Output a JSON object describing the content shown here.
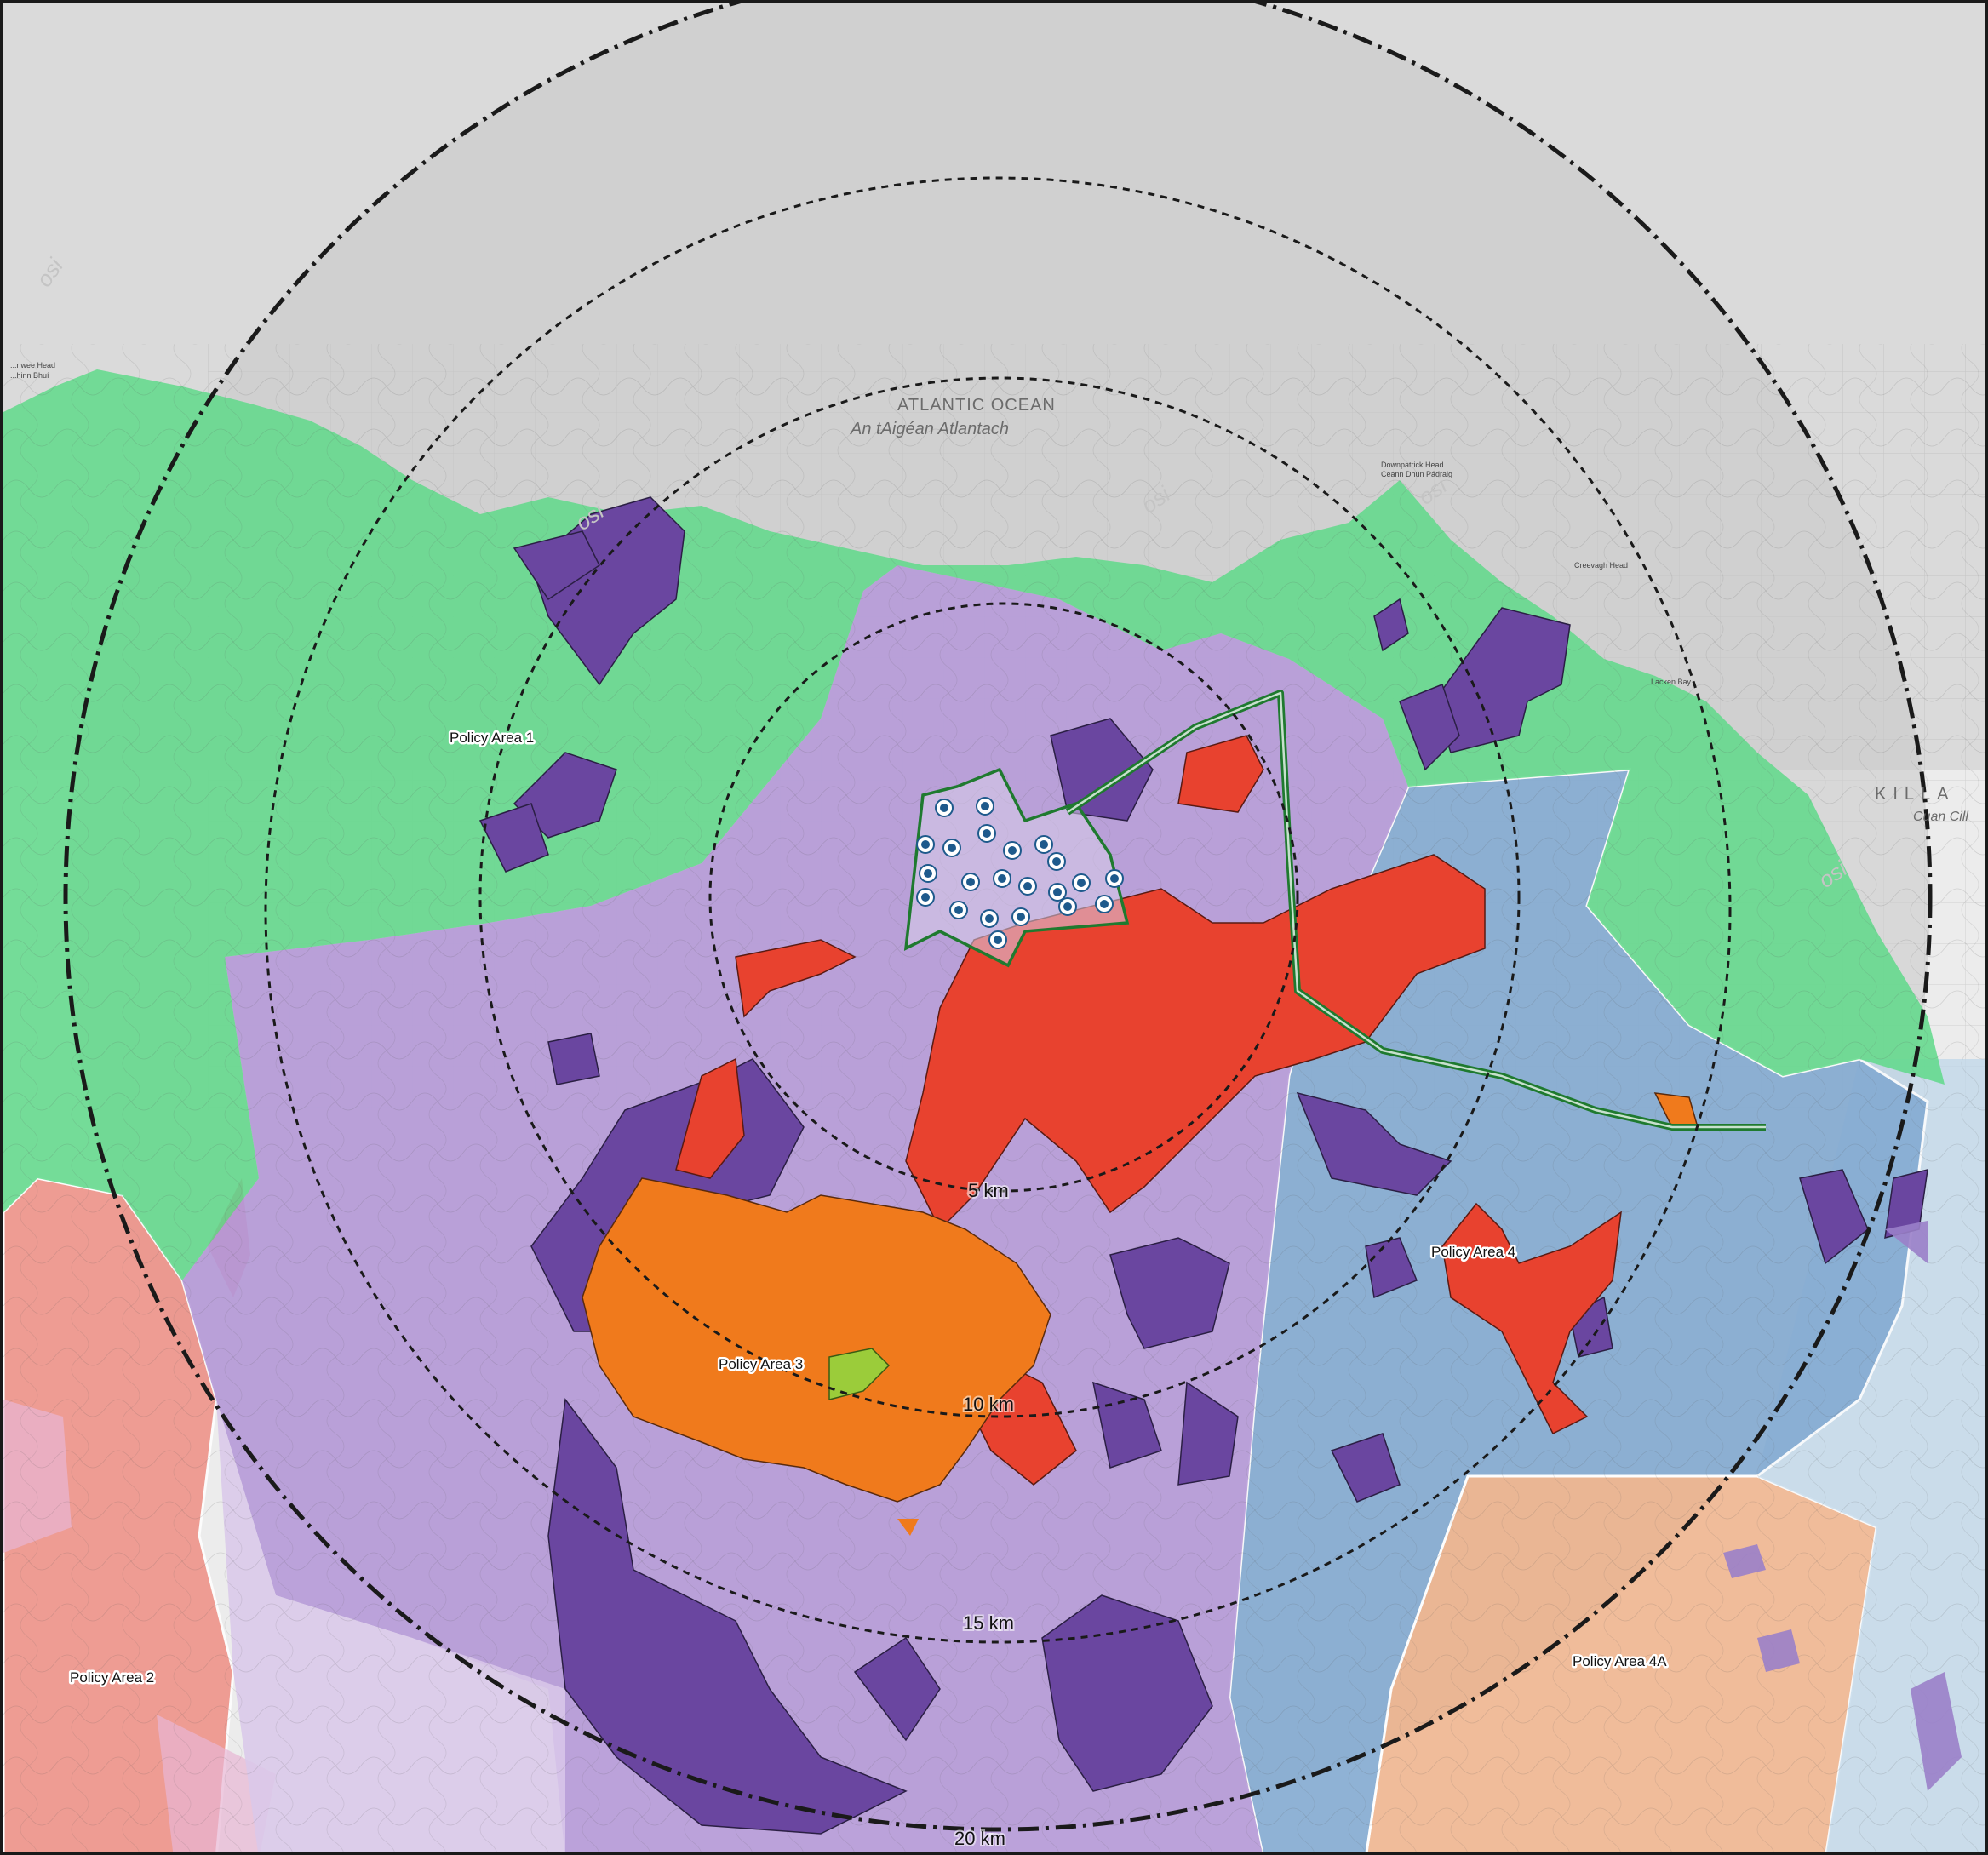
{
  "map": {
    "ocean": {
      "name": "ATLANTIC OCEAN",
      "name_irish": "An tAigéan Atlantach"
    },
    "bay": {
      "name": "KILLA",
      "name_irish": "Cuan Cill"
    },
    "coast_labels": {
      "head_west": "...nwee Head",
      "head_west_ga": "...hinn Bhuí",
      "downpatrick": "Downpatrick Head",
      "downpatrick_ga": "Ceann Dhún Pádraig",
      "creevagh": "Creevagh Head",
      "lacken": "Lacken Bay"
    },
    "osi_watermark": "osi",
    "policy_areas": [
      {
        "id": "pa1",
        "label": "Policy Area 1",
        "color": "#5fd98a"
      },
      {
        "id": "pa2",
        "label": "Policy Area 2",
        "color": "#ef8f84"
      },
      {
        "id": "pa3",
        "label": "Policy Area 3",
        "color": "#f07a1c"
      },
      {
        "id": "pa4",
        "label": "Policy Area 4",
        "color": "#7fa8d1"
      },
      {
        "id": "pa4a",
        "label": "Policy Area 4A",
        "color": "#f2a878"
      }
    ],
    "layer_colors": {
      "sea": "#d4d4d4",
      "purple_light": "#b69ad8",
      "purple_dark": "#6a46a0",
      "red": "#e8422f",
      "pink": "#e8b6d4",
      "lime": "#9bcc3a",
      "site_boundary": "#1f7a2f",
      "turbine_fill": "#1e5a8c"
    },
    "distance_rings": [
      {
        "label": "5 km"
      },
      {
        "label": "10 km"
      },
      {
        "label": "15 km"
      },
      {
        "label": "20 km"
      }
    ]
  }
}
